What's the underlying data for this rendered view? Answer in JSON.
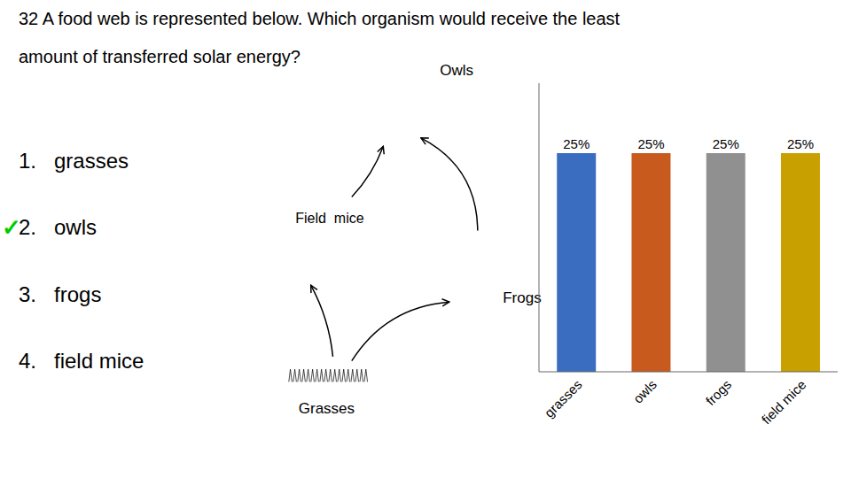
{
  "chart_data": {
    "type": "bar",
    "title": "32 A food web is represented below. Which organism would receive the least",
    "subtitle": "amount of transferred solar energy?",
    "categories": [
      "grasses",
      "owls",
      "frogs",
      "field mice"
    ],
    "values": [
      25,
      25,
      25,
      25
    ],
    "value_labels": [
      "25%",
      "25%",
      "25%",
      "25%"
    ],
    "data_labels": true,
    "colors": [
      "#3a6dbf",
      "#c85a1e",
      "#909090",
      "#c8a000"
    ],
    "ylim": [
      0,
      33
    ],
    "tick_labels": "x",
    "grid": false,
    "annotations": [
      {
        "text": "1.   grasses"
      },
      {
        "text": "2.   owls"
      },
      {
        "text": "3.   frogs"
      },
      {
        "text": "4.   field mice"
      },
      {
        "text": "✓",
        "color": "#00cc00"
      },
      {
        "text": "Owls"
      },
      {
        "text": "Field  mice"
      },
      {
        "text": "Frogs"
      },
      {
        "text": "Grasses"
      }
    ]
  }
}
